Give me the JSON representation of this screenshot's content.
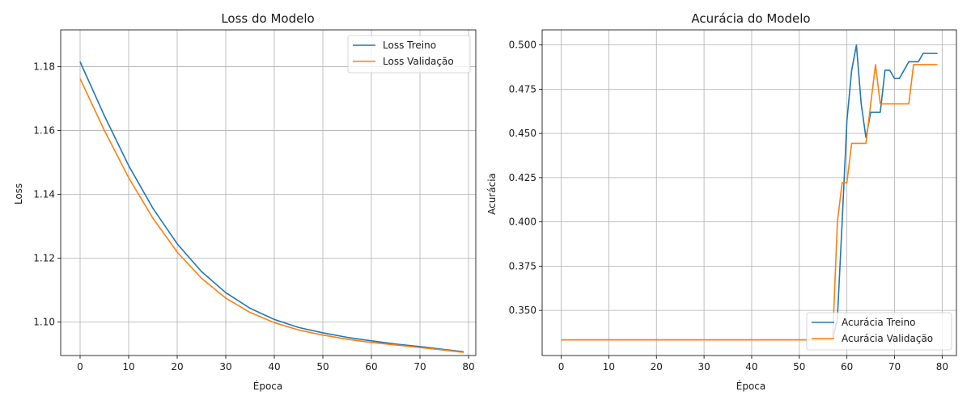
{
  "chart_data": [
    {
      "type": "line",
      "title": "Loss do Modelo",
      "xlabel": "Época",
      "ylabel": "Loss",
      "xlim": [
        -4,
        81.5
      ],
      "ylim": [
        1.0895,
        1.1915
      ],
      "xticks": [
        0,
        10,
        20,
        30,
        40,
        50,
        60,
        70,
        80
      ],
      "yticks": [
        1.1,
        1.12,
        1.14,
        1.16,
        1.18
      ],
      "ytick_decimals": 2,
      "grid": true,
      "legend_position": "top-right",
      "series": [
        {
          "name": "Loss Treino",
          "color": "#1f77b4",
          "x": [
            0,
            5,
            10,
            15,
            20,
            25,
            30,
            35,
            40,
            45,
            50,
            55,
            60,
            65,
            70,
            75,
            79
          ],
          "y": [
            1.1815,
            1.1646,
            1.149,
            1.1356,
            1.1245,
            1.1158,
            1.1092,
            1.1043,
            1.1008,
            1.0983,
            1.0966,
            1.0952,
            1.0941,
            1.0931,
            1.0923,
            1.0914,
            1.0907
          ]
        },
        {
          "name": "Loss Validação",
          "color": "#ff7f0e",
          "x": [
            0,
            5,
            10,
            15,
            20,
            25,
            30,
            35,
            40,
            45,
            50,
            55,
            60,
            65,
            70,
            75,
            79
          ],
          "y": [
            1.1762,
            1.16,
            1.1452,
            1.1325,
            1.1219,
            1.1137,
            1.1075,
            1.103,
            1.0998,
            1.0975,
            1.0959,
            1.0946,
            1.0936,
            1.0928,
            1.092,
            1.0912,
            1.0905
          ]
        }
      ]
    },
    {
      "type": "line",
      "title": "Acurácia do Modelo",
      "xlabel": "Época",
      "ylabel": "Acurácia",
      "xlim": [
        -4,
        83
      ],
      "ylim": [
        0.3245,
        0.5085
      ],
      "xticks": [
        0,
        10,
        20,
        30,
        40,
        50,
        60,
        70,
        80
      ],
      "yticks": [
        0.35,
        0.375,
        0.4,
        0.425,
        0.45,
        0.475,
        0.5
      ],
      "ytick_decimals": 3,
      "grid": true,
      "legend_position": "bottom-right",
      "series": [
        {
          "name": "Acurácia Treino",
          "color": "#1f77b4",
          "x": [
            0,
            57,
            58,
            59,
            60,
            61,
            62,
            63,
            64,
            65,
            66,
            67,
            68,
            69,
            70,
            71,
            72,
            73,
            74,
            75,
            76,
            77,
            78,
            79
          ],
          "y": [
            0.3333,
            0.3333,
            0.3452,
            0.4,
            0.4571,
            0.4857,
            0.5,
            0.4667,
            0.4476,
            0.4619,
            0.4619,
            0.4619,
            0.4857,
            0.4857,
            0.481,
            0.481,
            0.4857,
            0.4905,
            0.4905,
            0.4905,
            0.4952,
            0.4952,
            0.4952,
            0.4952
          ]
        },
        {
          "name": "Acurácia Validação",
          "color": "#ff7f0e",
          "x": [
            0,
            57,
            58,
            59,
            60,
            61,
            62,
            63,
            64,
            65,
            66,
            67,
            68,
            69,
            70,
            71,
            72,
            73,
            74,
            75,
            76,
            77,
            78,
            79
          ],
          "y": [
            0.3333,
            0.3333,
            0.4,
            0.4222,
            0.4222,
            0.4444,
            0.4444,
            0.4444,
            0.4444,
            0.4667,
            0.4889,
            0.4667,
            0.4667,
            0.4667,
            0.4667,
            0.4667,
            0.4667,
            0.4667,
            0.4889,
            0.4889,
            0.4889,
            0.4889,
            0.4889,
            0.4889
          ]
        }
      ]
    }
  ]
}
